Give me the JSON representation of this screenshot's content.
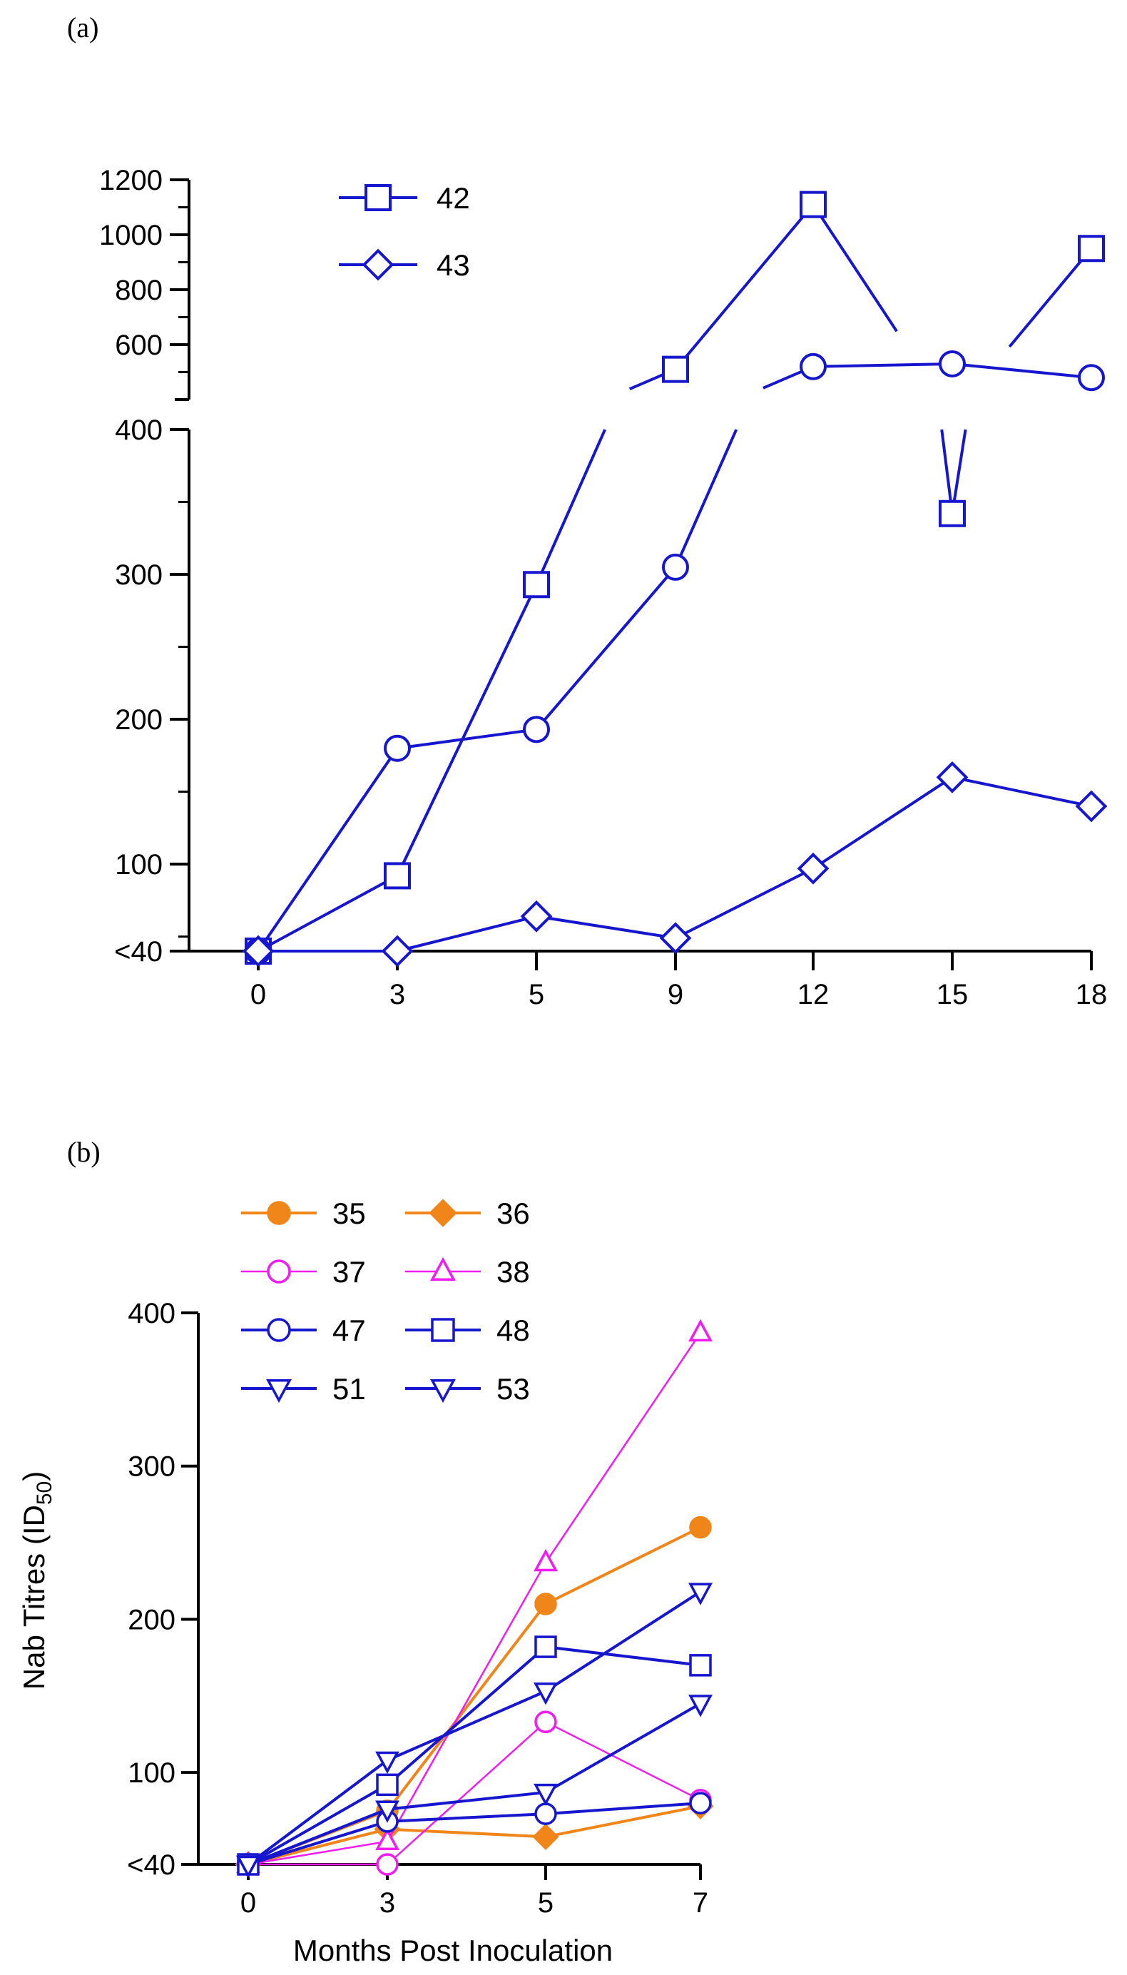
{
  "colors": {
    "blue": "#1616ce",
    "orange": "#f08519",
    "magenta": "#f01cf0",
    "axis": "#000000"
  },
  "panels": [
    {
      "label": "(a)"
    },
    {
      "label": "(b)"
    }
  ],
  "chart_data": [
    {
      "type": "line",
      "panel": "(a)",
      "title": "",
      "xlabel": "",
      "ylabel": "",
      "categories": [
        "0",
        "3",
        "5",
        "9",
        "12",
        "15",
        "18"
      ],
      "y_axis": {
        "lower_segment": {
          "range": [
            40,
            400
          ],
          "ticks": [
            "<40",
            "100",
            "200",
            "300",
            "400"
          ]
        },
        "upper_segment": {
          "range": [
            400,
            1200
          ],
          "ticks": [
            "600",
            "800",
            "1000",
            "1200"
          ]
        }
      },
      "legend": {
        "position": "top-left",
        "entries": [
          {
            "name": "42",
            "marker": "square"
          },
          {
            "name": "43",
            "marker": "diamond"
          }
        ]
      },
      "series": [
        {
          "name": "42",
          "marker": "square",
          "color": "#1616ce",
          "values": [
            40,
            92,
            293,
            510,
            1110,
            342,
            950
          ]
        },
        {
          "name": "",
          "marker": "circle",
          "color": "#1616ce",
          "values": [
            40,
            180,
            193,
            305,
            520,
            530,
            480
          ]
        },
        {
          "name": "43",
          "marker": "diamond",
          "color": "#1616ce",
          "values": [
            40,
            40,
            64,
            49,
            97,
            160,
            140
          ]
        }
      ]
    },
    {
      "type": "line",
      "panel": "(b)",
      "title": "",
      "xlabel": "Months Post Inoculation",
      "ylabel_main": "Nab Titres (ID",
      "ylabel_sub": "50",
      "ylabel_end": ")",
      "categories": [
        "0",
        "3",
        "5",
        "7"
      ],
      "ylim": [
        40,
        400
      ],
      "yticks": [
        "<40",
        "100",
        "200",
        "300",
        "400"
      ],
      "legend": {
        "position": "top-left"
      },
      "series": [
        {
          "name": "35",
          "marker": "circle-filled",
          "color": "#f08519",
          "values": [
            40,
            75,
            210,
            260
          ]
        },
        {
          "name": "36",
          "marker": "diamond-filled",
          "color": "#f08519",
          "values": [
            40,
            63,
            58,
            78
          ]
        },
        {
          "name": "37",
          "marker": "circle",
          "color": "#f01cf0",
          "values": [
            40,
            40,
            133,
            82
          ]
        },
        {
          "name": "38",
          "marker": "triangle-up",
          "color": "#f01cf0",
          "values": [
            40,
            55,
            237,
            387
          ]
        },
        {
          "name": "47",
          "marker": "circle",
          "color": "#1616ce",
          "values": [
            40,
            68,
            73,
            80
          ]
        },
        {
          "name": "48",
          "marker": "square",
          "color": "#1616ce",
          "values": [
            40,
            92,
            182,
            170
          ]
        },
        {
          "name": "51",
          "marker": "triangle-down",
          "color": "#1616ce",
          "values": [
            40,
            108,
            153,
            218
          ]
        },
        {
          "name": "53",
          "marker": "triangle-down",
          "color": "#1616ce",
          "values": [
            40,
            76,
            87,
            145
          ]
        }
      ]
    }
  ]
}
